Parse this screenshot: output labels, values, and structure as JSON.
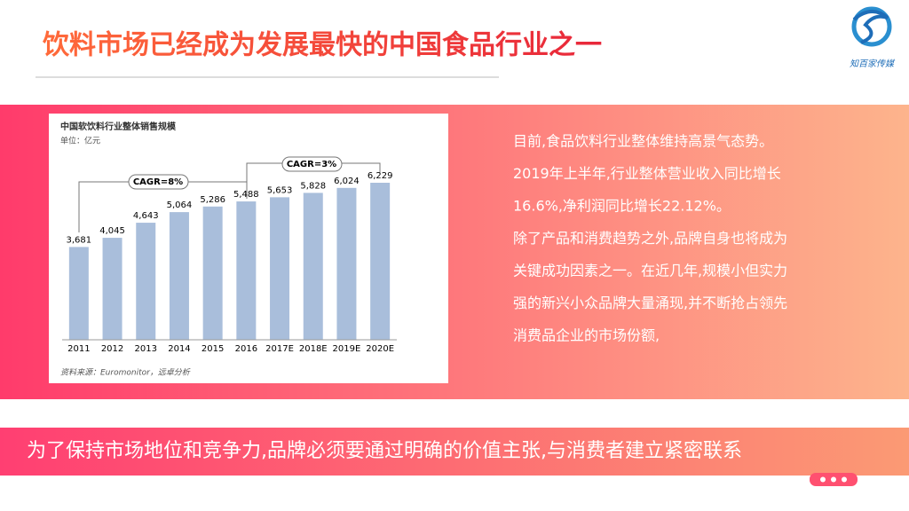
{
  "header": {
    "title": "饮料市场已经成为发展最快的中国食品行业之一",
    "logo_text": "知百家传媒"
  },
  "chart_data": {
    "type": "bar",
    "title": "中国软饮料行业整体销售规模",
    "subtitle": "单位：亿元",
    "categories": [
      "2011",
      "2012",
      "2013",
      "2014",
      "2015",
      "2016",
      "2017E",
      "2018E",
      "2019E",
      "2020E"
    ],
    "values": [
      3681,
      4045,
      4643,
      5064,
      5286,
      5488,
      5653,
      5828,
      6024,
      6229
    ],
    "value_labels": [
      "3,681",
      "4,045",
      "4,643",
      "5,064",
      "5,286",
      "5,488",
      "5,653",
      "5,828",
      "6,024",
      "6,229"
    ],
    "color": "#a9bedb",
    "ylim": [
      0,
      8200
    ],
    "annotations": [
      "CAGR=8%",
      "CAGR=3%"
    ],
    "source": "资料来源：Euromonitor，远卓分析"
  },
  "text": {
    "lines": [
      "目前,食品饮料行业整体维持高景气态势。",
      "2019年上半年,行业整体营业收入同比增长",
      "16.6%,净利润同比增长22.12%。",
      "除了产品和消费趋势之外,品牌自身也将成为",
      "关键成功因素之一。在近几年,规模小但实力",
      "强的新兴小众品牌大量涌现,并不断抢占领先",
      "消费品企业的市场份额,"
    ]
  },
  "banner": {
    "text": "为了保持市场地位和竞争力,品牌必须要通过明确的价值主张,与消费者建立紧密联系"
  }
}
